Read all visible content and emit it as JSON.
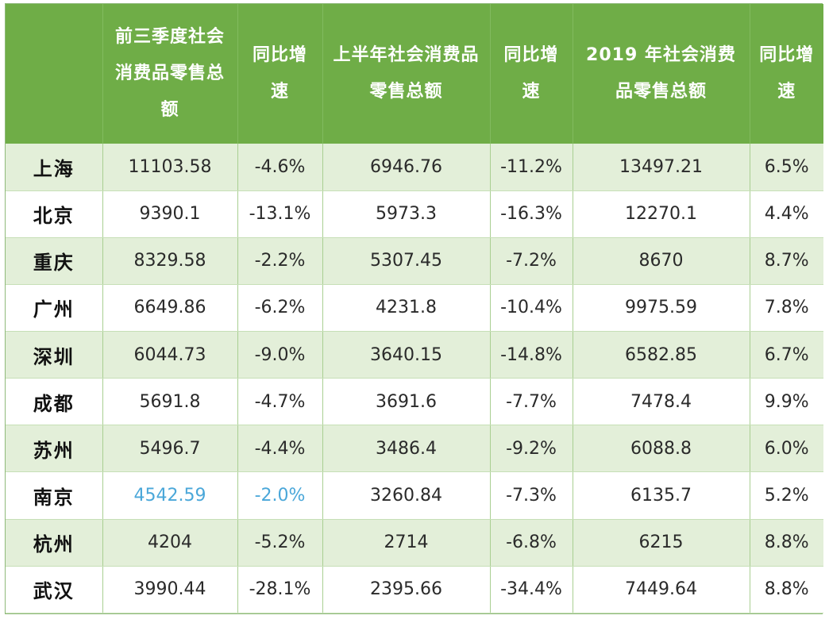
{
  "chart_data": {
    "type": "table",
    "columns": [
      "",
      "前三季度社会消费品零售总额",
      "同比增速",
      "上半年社会消费品零售总额",
      "同比增速",
      "2019 年社会消费品零售总额",
      "同比增速"
    ],
    "rows": [
      {
        "city": "上海",
        "values": [
          "11103.58",
          "-4.6%",
          "6946.76",
          "-11.2%",
          "13497.21",
          "6.5%"
        ]
      },
      {
        "city": "北京",
        "values": [
          "9390.1",
          "-13.1%",
          "5973.3",
          "-16.3%",
          "12270.1",
          "4.4%"
        ]
      },
      {
        "city": "重庆",
        "values": [
          "8329.58",
          "-2.2%",
          "5307.45",
          "-7.2%",
          "8670",
          "8.7%"
        ]
      },
      {
        "city": "广州",
        "values": [
          "6649.86",
          "-6.2%",
          "4231.8",
          "-10.4%",
          "9975.59",
          "7.8%"
        ]
      },
      {
        "city": "深圳",
        "values": [
          "6044.73",
          "-9.0%",
          "3640.15",
          "-14.8%",
          "6582.85",
          "6.7%"
        ]
      },
      {
        "city": "成都",
        "values": [
          "5691.8",
          "-4.7%",
          "3691.6",
          "-7.7%",
          "7478.4",
          "9.9%"
        ]
      },
      {
        "city": "苏州",
        "values": [
          "5496.7",
          "-4.4%",
          "3486.4",
          "-9.2%",
          "6088.8",
          "6.0%"
        ]
      },
      {
        "city": "南京",
        "values": [
          "4542.59",
          "-2.0%",
          "3260.84",
          "-7.3%",
          "6135.7",
          "5.2%"
        ]
      },
      {
        "city": "杭州",
        "values": [
          "4204",
          "-5.2%",
          "2714",
          "-6.8%",
          "6215",
          "8.8%"
        ]
      },
      {
        "city": "武汉",
        "values": [
          "3990.44",
          "-28.1%",
          "2395.66",
          "-34.4%",
          "7449.64",
          "8.8%"
        ]
      }
    ]
  },
  "colors": {
    "header_bg": "#6fad47",
    "row_stripe": "#e3efd9",
    "link_text": "#4aa7d9"
  }
}
